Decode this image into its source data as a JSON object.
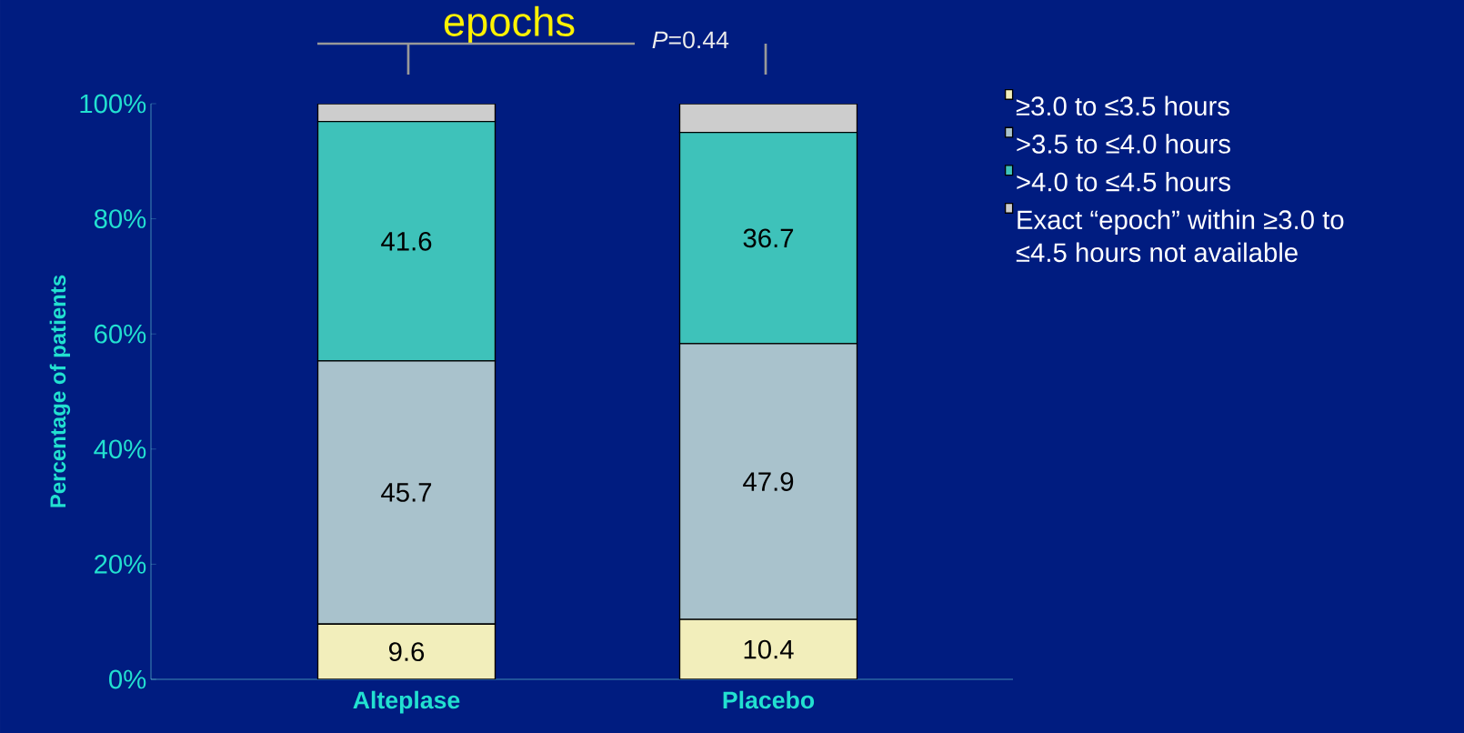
{
  "chart_data": {
    "type": "bar",
    "stacked": true,
    "title": "epochs",
    "ylabel": "Percentage of patients",
    "categories": [
      "Alteplase",
      "Placebo"
    ],
    "series": [
      {
        "name": "≥3.0 to ≤3.5 hours",
        "color": "#f2eebb",
        "values": [
          9.6,
          10.4
        ],
        "value_labels": [
          "9.6",
          "10.4"
        ]
      },
      {
        "name": ">3.5 to ≤4.0 hours",
        "color": "#a9c2cc",
        "values": [
          45.7,
          47.9
        ],
        "value_labels": [
          "45.7",
          "47.9"
        ]
      },
      {
        "name": ">4.0 to ≤4.5 hours",
        "color": "#3ec2ba",
        "values": [
          41.6,
          36.7
        ],
        "value_labels": [
          "41.6",
          "36.7"
        ]
      },
      {
        "name": "Exact “epoch” within ≥3.0 to ≤4.5 hours not available",
        "color": "#cdcdcd",
        "values": [
          3.1,
          5.0
        ]
      }
    ],
    "ylim": [
      0,
      100
    ],
    "yticks": [
      {
        "value": 0,
        "label": "0%"
      },
      {
        "value": 20,
        "label": "20%"
      },
      {
        "value": 40,
        "label": "40%"
      },
      {
        "value": 60,
        "label": "60%"
      },
      {
        "value": 80,
        "label": "80%"
      },
      {
        "value": 100,
        "label": "100%"
      }
    ],
    "annotations": [
      "*P*=0.44"
    ],
    "legend": "right",
    "grid": false
  }
}
